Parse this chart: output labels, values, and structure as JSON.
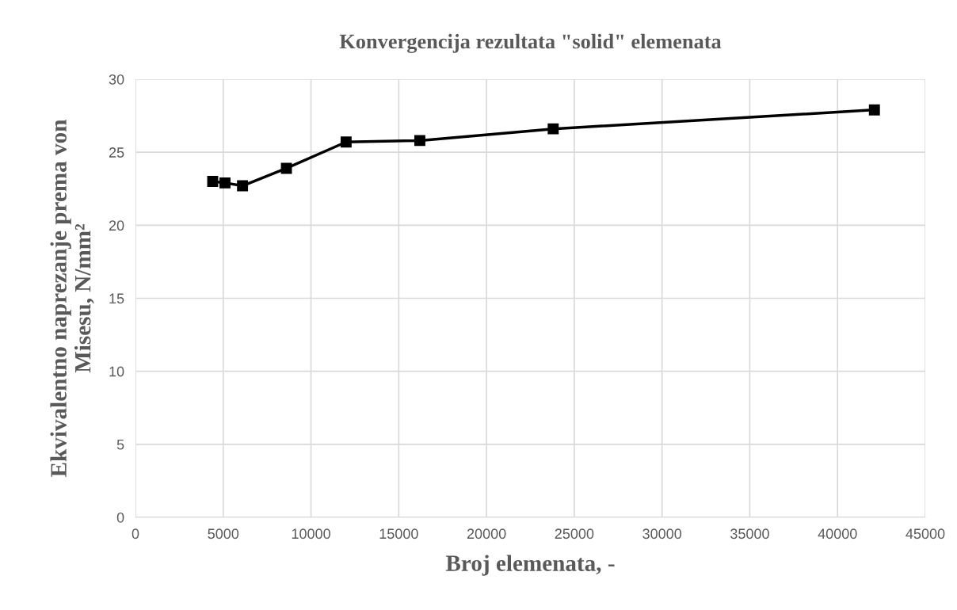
{
  "chart_data": {
    "type": "line",
    "title": "Konvergencija rezultata \"solid\" elemenata",
    "xlabel": "Broj elemenata, -",
    "ylabel": "Ekvivalentno naprezanje prema von\nMisesu, N/mm²",
    "x": [
      4400,
      5100,
      6100,
      8600,
      12000,
      16200,
      23800,
      42100
    ],
    "series": [
      {
        "color": "#000000",
        "values": [
          23.0,
          22.9,
          22.7,
          23.9,
          25.7,
          25.8,
          26.6,
          27.9
        ]
      }
    ],
    "xlim": [
      0,
      45000
    ],
    "xticks": [
      0,
      5000,
      10000,
      15000,
      20000,
      25000,
      30000,
      35000,
      40000,
      45000
    ],
    "ylim": [
      0,
      30
    ],
    "yticks": [
      0,
      5,
      10,
      15,
      20,
      25,
      30
    ],
    "grid": true,
    "marker": "square",
    "line_style": "solid"
  }
}
